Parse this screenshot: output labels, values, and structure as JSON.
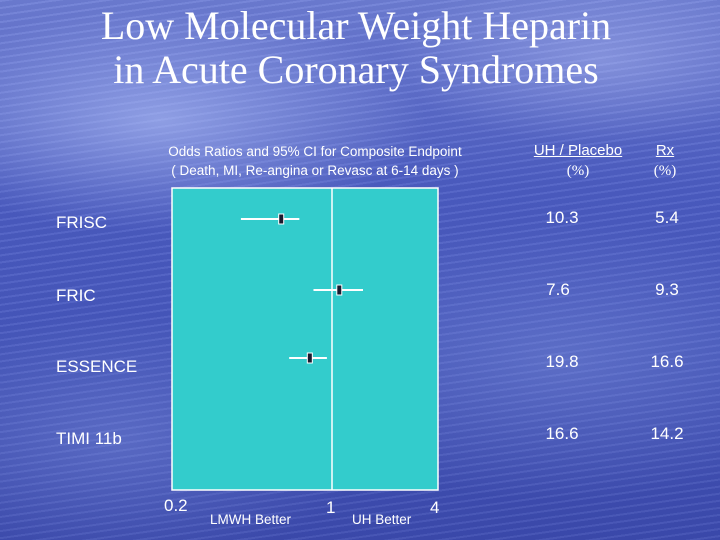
{
  "slide": {
    "title_line1": "Low Molecular Weight Heparin",
    "title_line2": "in Acute Coronary Syndromes"
  },
  "colors": {
    "plot_background": "#33cccc",
    "plot_border": "#ffffff",
    "marker": "#1a1a2e",
    "whisker": "#ffffff"
  },
  "chart_data": {
    "type": "forest",
    "title_line1": "Odds Ratios and 95% CI for Composite Endpoint",
    "title_line2": "( Death, MI, Re-angina or Revasc at 6-14 days )",
    "x_scale": "log",
    "xlim": [
      0.2,
      4
    ],
    "reference_line": 1,
    "x_tick_labels": [
      "0.2",
      "1",
      "4"
    ],
    "x_direction_labels": [
      "LMWH Better",
      "UH Better"
    ],
    "table_headers": {
      "uh_placebo_line1": "UH / Placebo",
      "uh_placebo_line2": "(%)",
      "rx_line1": "Rx",
      "rx_line2": "(%)"
    },
    "studies": [
      {
        "name": "FRISC",
        "or": 0.6,
        "ci_low": 0.4,
        "ci_high": 0.72,
        "uh_placebo_pct": "10.3",
        "rx_pct": "5.4"
      },
      {
        "name": "FRIC",
        "or": 1.1,
        "ci_low": 0.83,
        "ci_high": 1.5,
        "uh_placebo_pct": "7.6",
        "rx_pct": "9.3"
      },
      {
        "name": "ESSENCE",
        "or": 0.8,
        "ci_low": 0.65,
        "ci_high": 0.95,
        "uh_placebo_pct": "19.8",
        "rx_pct": "16.6"
      },
      {
        "name": "TIMI 11b",
        "or": null,
        "ci_low": null,
        "ci_high": null,
        "uh_placebo_pct": "16.6",
        "rx_pct": "14.2"
      }
    ]
  }
}
